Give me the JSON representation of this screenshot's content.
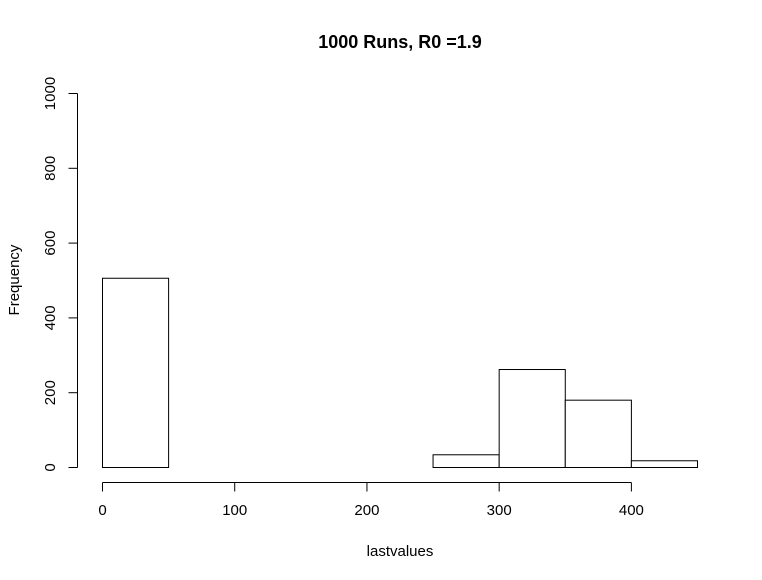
{
  "chart_data": {
    "type": "bar",
    "title": "1000 Runs, R0 =1.9",
    "xlabel": "lastvalues",
    "ylabel": "Frequency",
    "bins": [
      {
        "from": 0,
        "to": 50,
        "count": 506
      },
      {
        "from": 50,
        "to": 100,
        "count": 0
      },
      {
        "from": 100,
        "to": 150,
        "count": 0
      },
      {
        "from": 150,
        "to": 200,
        "count": 0
      },
      {
        "from": 200,
        "to": 250,
        "count": 0
      },
      {
        "from": 250,
        "to": 300,
        "count": 34
      },
      {
        "from": 300,
        "to": 350,
        "count": 262
      },
      {
        "from": 350,
        "to": 400,
        "count": 180
      },
      {
        "from": 400,
        "to": 450,
        "count": 18
      }
    ],
    "xlim": [
      0,
      450
    ],
    "ylim": [
      0,
      1000
    ],
    "xticks": [
      "0",
      "100",
      "200",
      "300",
      "400"
    ],
    "xtick_values": [
      0,
      100,
      200,
      300,
      400
    ],
    "yticks": [
      "0",
      "200",
      "400",
      "600",
      "800",
      "1000"
    ],
    "ytick_values": [
      0,
      200,
      400,
      600,
      800,
      1000
    ],
    "grid": false,
    "bar_fill": "#ffffff",
    "bar_stroke": "#000000"
  }
}
